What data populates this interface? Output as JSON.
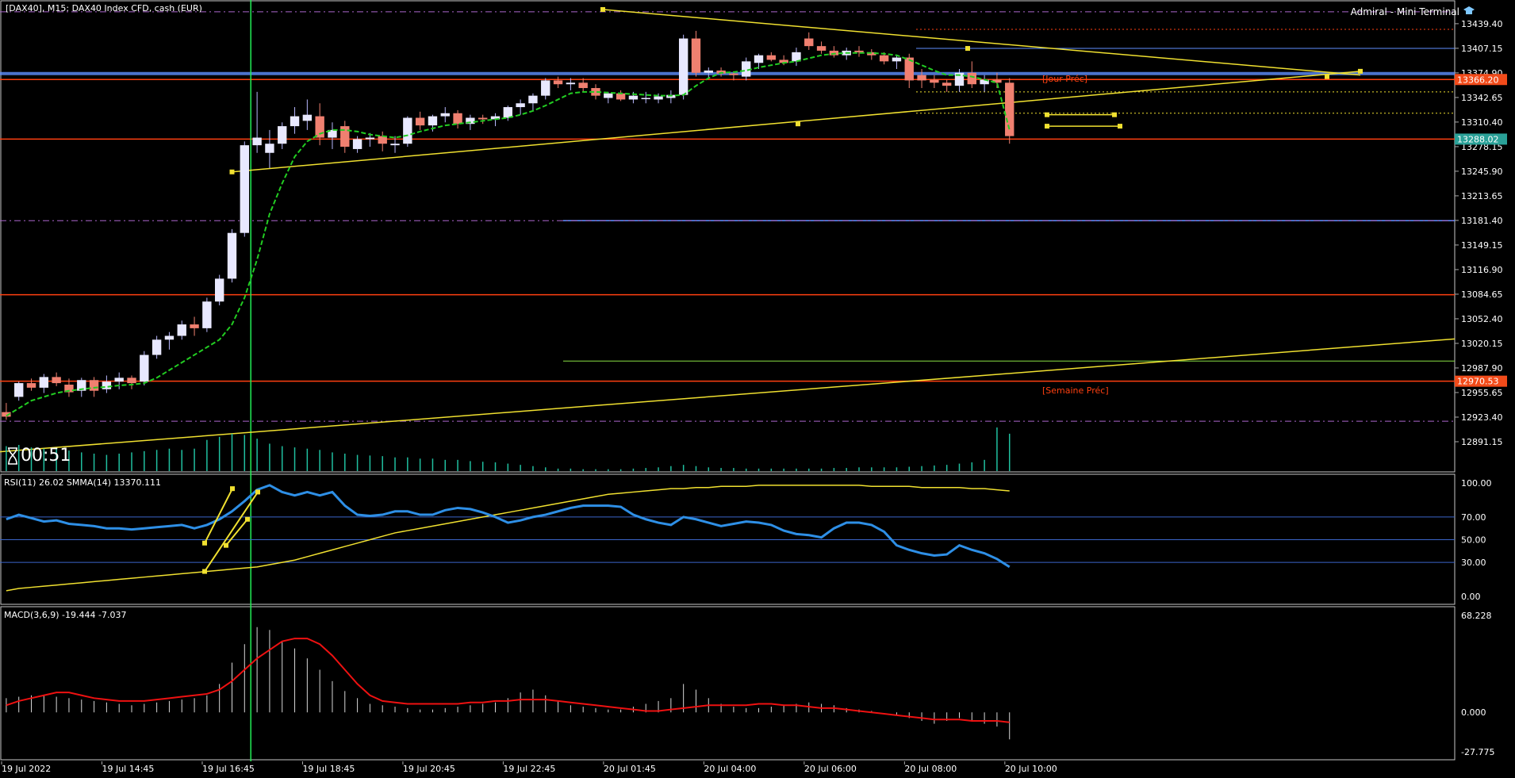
{
  "window": {
    "title": "[DAX40], M15:  DAX40 Index CFD, cash (EUR)",
    "brand": "Admiral - Mini Terminal",
    "timer": "00:51"
  },
  "colors": {
    "bg": "#000000",
    "axis": "#ffffff",
    "bull": "#e8e8ff",
    "bear": "#f08070",
    "ma": "#22cc22",
    "trend": "#f0e030",
    "hline_red": "#ff4010",
    "hline_blue": "#6090ff",
    "rsi": "#2e8fe6",
    "macd_signal": "#ee1111",
    "volume": "#20c0a0",
    "badge_red": "#f24b1a",
    "badge_green": "#2aa198"
  },
  "labels": {
    "jour_prec": "[Jour Préc]",
    "semaine_prec": "[Semaine Préc]"
  },
  "price_badges": [
    {
      "value": 13366.2,
      "text": "13366.20",
      "color": "#f24b1a"
    },
    {
      "value": 13288.02,
      "text": "13288.02",
      "color": "#2aa198"
    },
    {
      "value": 12970.53,
      "text": "12970.53",
      "color": "#f24b1a"
    }
  ],
  "chart_data": [
    {
      "type": "candlestick",
      "title": "[DAX40], M15:  DAX40 Index CFD, cash (EUR)",
      "ylim": [
        12862,
        13458
      ],
      "y_ticks": [
        "13439.40",
        "13407.15",
        "13374.90",
        "13342.65",
        "13310.40",
        "13278.15",
        "13245.90",
        "13213.65",
        "13181.40",
        "13149.15",
        "13116.90",
        "13084.65",
        "13052.40",
        "13020.15",
        "12987.90",
        "12955.65",
        "12923.40",
        "12891.15"
      ],
      "y_tick_values": [
        13439.4,
        13407.15,
        13374.9,
        13342.65,
        13310.4,
        13278.15,
        13245.9,
        13213.65,
        13181.4,
        13149.15,
        13116.9,
        13084.65,
        13052.4,
        13020.15,
        12987.9,
        12955.65,
        12923.4,
        12891.15
      ],
      "x_ticks": [
        "19 Jul 2022",
        "19 Jul 14:45",
        "19 Jul 16:45",
        "19 Jul 18:45",
        "19 Jul 20:45",
        "19 Jul 22:45",
        "20 Jul 01:45",
        "20 Jul 04:00",
        "20 Jul 06:00",
        "20 Jul 08:00",
        "20 Jul 10:00"
      ],
      "x_tick_index": [
        0,
        8,
        16,
        24,
        32,
        40,
        48,
        56,
        64,
        72,
        80
      ],
      "bars_visible": 116,
      "candles": [
        [
          12930,
          12942,
          12920,
          12924
        ],
        [
          12950,
          12970,
          12945,
          12968
        ],
        [
          12968,
          12974,
          12958,
          12962
        ],
        [
          12962,
          12980,
          12955,
          12976
        ],
        [
          12976,
          12982,
          12964,
          12968
        ],
        [
          12966,
          12974,
          12950,
          12956
        ],
        [
          12958,
          12975,
          12950,
          12972
        ],
        [
          12972,
          12976,
          12950,
          12958
        ],
        [
          12960,
          12978,
          12955,
          12970
        ],
        [
          12970,
          12982,
          12960,
          12975
        ],
        [
          12975,
          12978,
          12960,
          12968
        ],
        [
          12970,
          13010,
          12965,
          13005
        ],
        [
          13005,
          13030,
          13000,
          13025
        ],
        [
          13025,
          13035,
          13012,
          13030
        ],
        [
          13030,
          13050,
          13025,
          13045
        ],
        [
          13045,
          13055,
          13030,
          13040
        ],
        [
          13040,
          13080,
          13035,
          13075
        ],
        [
          13075,
          13110,
          13070,
          13105
        ],
        [
          13105,
          13170,
          13100,
          13165
        ],
        [
          13165,
          13285,
          13160,
          13280
        ],
        [
          13280,
          13350,
          13270,
          13290
        ],
        [
          13270,
          13300,
          13250,
          13282
        ],
        [
          13282,
          13310,
          13275,
          13305
        ],
        [
          13305,
          13330,
          13295,
          13318
        ],
        [
          13312,
          13340,
          13300,
          13320
        ],
        [
          13318,
          13335,
          13280,
          13290
        ],
        [
          13290,
          13310,
          13275,
          13300
        ],
        [
          13305,
          13312,
          13270,
          13278
        ],
        [
          13275,
          13292,
          13270,
          13288
        ],
        [
          13288,
          13296,
          13278,
          13290
        ],
        [
          13292,
          13298,
          13272,
          13282
        ],
        [
          13280,
          13292,
          13270,
          13282
        ],
        [
          13282,
          13318,
          13278,
          13316
        ],
        [
          13316,
          13324,
          13300,
          13306
        ],
        [
          13306,
          13320,
          13298,
          13318
        ],
        [
          13318,
          13330,
          13310,
          13322
        ],
        [
          13322,
          13326,
          13302,
          13308
        ],
        [
          13308,
          13320,
          13300,
          13316
        ],
        [
          13316,
          13320,
          13308,
          13314
        ],
        [
          13314,
          13322,
          13305,
          13318
        ],
        [
          13316,
          13332,
          13312,
          13330
        ],
        [
          13330,
          13340,
          13320,
          13335
        ],
        [
          13335,
          13348,
          13325,
          13345
        ],
        [
          13345,
          13368,
          13340,
          13365
        ],
        [
          13365,
          13370,
          13355,
          13360
        ],
        [
          13360,
          13368,
          13352,
          13362
        ],
        [
          13362,
          13368,
          13350,
          13355
        ],
        [
          13355,
          13360,
          13340,
          13345
        ],
        [
          13342,
          13350,
          13335,
          13348
        ],
        [
          13348,
          13352,
          13338,
          13340
        ],
        [
          13340,
          13350,
          13335,
          13345
        ],
        [
          13342,
          13350,
          13335,
          13342
        ],
        [
          13340,
          13348,
          13335,
          13344
        ],
        [
          13342,
          13352,
          13335,
          13346
        ],
        [
          13346,
          13425,
          13340,
          13420
        ],
        [
          13420,
          13430,
          13370,
          13375
        ],
        [
          13375,
          13382,
          13368,
          13378
        ],
        [
          13378,
          13382,
          13370,
          13374
        ],
        [
          13374,
          13376,
          13365,
          13372
        ],
        [
          13370,
          13395,
          13365,
          13390
        ],
        [
          13388,
          13400,
          13380,
          13398
        ],
        [
          13398,
          13402,
          13390,
          13392
        ],
        [
          13392,
          13398,
          13385,
          13388
        ],
        [
          13390,
          13408,
          13384,
          13402
        ],
        [
          13420,
          13428,
          13405,
          13410
        ],
        [
          13410,
          13416,
          13400,
          13404
        ],
        [
          13404,
          13410,
          13395,
          13398
        ],
        [
          13398,
          13408,
          13392,
          13404
        ],
        [
          13404,
          13410,
          13396,
          13402
        ],
        [
          13402,
          13406,
          13392,
          13398
        ],
        [
          13398,
          13402,
          13386,
          13390
        ],
        [
          13390,
          13398,
          13380,
          13395
        ],
        [
          13395,
          13400,
          13355,
          13365
        ],
        [
          13372,
          13380,
          13355,
          13365
        ],
        [
          13366,
          13372,
          13355,
          13362
        ],
        [
          13362,
          13366,
          13350,
          13358
        ],
        [
          13358,
          13380,
          13350,
          13375
        ],
        [
          13375,
          13390,
          13355,
          13360
        ],
        [
          13360,
          13372,
          13350,
          13366
        ],
        [
          13366,
          13375,
          13355,
          13362
        ],
        [
          13362,
          13368,
          13282,
          13292
        ]
      ],
      "moving_average": [
        12925,
        12935,
        12945,
        12950,
        12955,
        12958,
        12960,
        12962,
        12963,
        12965,
        12966,
        12968,
        12975,
        12985,
        12995,
        13005,
        13015,
        13025,
        13045,
        13080,
        13130,
        13190,
        13230,
        13265,
        13285,
        13295,
        13300,
        13300,
        13298,
        13294,
        13292,
        13290,
        13293,
        13298,
        13302,
        13306,
        13308,
        13310,
        13312,
        13314,
        13316,
        13320,
        13325,
        13332,
        13340,
        13348,
        13350,
        13350,
        13349,
        13348,
        13347,
        13346,
        13345,
        13345,
        13346,
        13358,
        13368,
        13375,
        13376,
        13378,
        13382,
        13385,
        13388,
        13390,
        13394,
        13398,
        13400,
        13401,
        13401,
        13401,
        13400,
        13398,
        13392,
        13385,
        13378,
        13372,
        13372,
        13370,
        13366,
        13362,
        13300
      ],
      "volume": [
        40,
        42,
        38,
        36,
        35,
        33,
        30,
        28,
        26,
        28,
        30,
        32,
        34,
        36,
        34,
        36,
        50,
        55,
        60,
        58,
        52,
        44,
        40,
        38,
        36,
        34,
        30,
        28,
        26,
        25,
        24,
        22,
        22,
        20,
        20,
        18,
        18,
        16,
        15,
        14,
        12,
        10,
        8,
        6,
        4,
        4,
        3,
        3,
        3,
        3,
        4,
        5,
        6,
        8,
        10,
        8,
        6,
        5,
        5,
        4,
        4,
        4,
        4,
        4,
        4,
        4,
        5,
        5,
        6,
        6,
        6,
        6,
        7,
        8,
        9,
        10,
        12,
        14,
        18,
        70,
        60
      ]
    },
    {
      "type": "line",
      "title": "RSI(11) 26.02 SMMA(14) 13370.111",
      "ylim": [
        0,
        100
      ],
      "y_ticks": [
        "100.00",
        "70.00",
        "50.00",
        "30.00",
        "0.00"
      ],
      "y_tick_values": [
        100,
        70,
        50,
        30,
        0
      ],
      "levels": [
        70,
        50,
        30
      ],
      "series": [
        {
          "name": "RSI(11)",
          "values": [
            68,
            72,
            69,
            66,
            67,
            64,
            63,
            62,
            60,
            60,
            59,
            60,
            61,
            62,
            63,
            60,
            63,
            68,
            75,
            84,
            94,
            98,
            92,
            89,
            92,
            89,
            92,
            80,
            72,
            71,
            72,
            75,
            75,
            72,
            72,
            76,
            78,
            77,
            74,
            70,
            65,
            67,
            70,
            72,
            75,
            78,
            80,
            80,
            80,
            79,
            72,
            68,
            65,
            63,
            70,
            68,
            65,
            62,
            64,
            66,
            65,
            63,
            58,
            55,
            54,
            52,
            60,
            65,
            65,
            63,
            57,
            45,
            41,
            38,
            36,
            37,
            45,
            41,
            38,
            33,
            26
          ]
        },
        {
          "name": "SMMA(14)",
          "values": [
            5,
            7,
            8,
            9,
            10,
            11,
            12,
            13,
            14,
            15,
            16,
            17,
            18,
            19,
            20,
            21,
            22,
            23,
            24,
            25,
            26,
            28,
            30,
            32,
            35,
            38,
            41,
            44,
            47,
            50,
            53,
            56,
            58,
            60,
            62,
            64,
            66,
            68,
            70,
            72,
            74,
            76,
            78,
            80,
            82,
            84,
            86,
            88,
            90,
            91,
            92,
            93,
            94,
            95,
            95,
            96,
            96,
            97,
            97,
            97,
            98,
            98,
            98,
            98,
            98,
            98,
            98,
            98,
            98,
            97,
            97,
            97,
            97,
            96,
            96,
            96,
            96,
            95,
            95,
            94,
            93
          ]
        }
      ]
    },
    {
      "type": "bar",
      "title": "MACD(3,6,9) -19.444 -7.037",
      "ylim": [
        -27.775,
        68.228
      ],
      "y_ticks": [
        "68.228",
        "0.000",
        "-27.775"
      ],
      "y_tick_values": [
        68.228,
        0,
        -27.775
      ],
      "histogram": [
        10,
        11,
        12,
        12,
        11,
        10,
        9,
        8,
        7,
        6,
        5,
        6,
        7,
        8,
        9,
        10,
        12,
        20,
        35,
        48,
        60,
        58,
        50,
        45,
        38,
        30,
        22,
        15,
        10,
        6,
        5,
        4,
        3,
        2,
        2,
        3,
        4,
        5,
        6,
        7,
        10,
        14,
        16,
        12,
        8,
        5,
        4,
        3,
        2,
        2,
        4,
        6,
        8,
        10,
        20,
        16,
        10,
        6,
        4,
        3,
        3,
        4,
        5,
        6,
        7,
        6,
        5,
        3,
        2,
        1,
        0,
        -2,
        -4,
        -6,
        -8,
        -6,
        -4,
        -6,
        -8,
        -10,
        -19
      ],
      "signal": [
        5,
        8,
        10,
        12,
        14,
        14,
        12,
        10,
        9,
        8,
        8,
        8,
        9,
        10,
        11,
        12,
        13,
        16,
        22,
        30,
        38,
        44,
        50,
        52,
        52,
        48,
        40,
        30,
        20,
        12,
        8,
        7,
        6,
        6,
        6,
        6,
        6,
        7,
        7,
        8,
        8,
        9,
        9,
        9,
        8,
        7,
        6,
        5,
        4,
        3,
        2,
        1,
        1,
        2,
        3,
        4,
        5,
        5,
        5,
        5,
        6,
        6,
        5,
        5,
        4,
        3,
        3,
        2,
        1,
        0,
        -1,
        -2,
        -3,
        -4,
        -5,
        -5,
        -5,
        -6,
        -6,
        -6,
        -7
      ]
    }
  ]
}
